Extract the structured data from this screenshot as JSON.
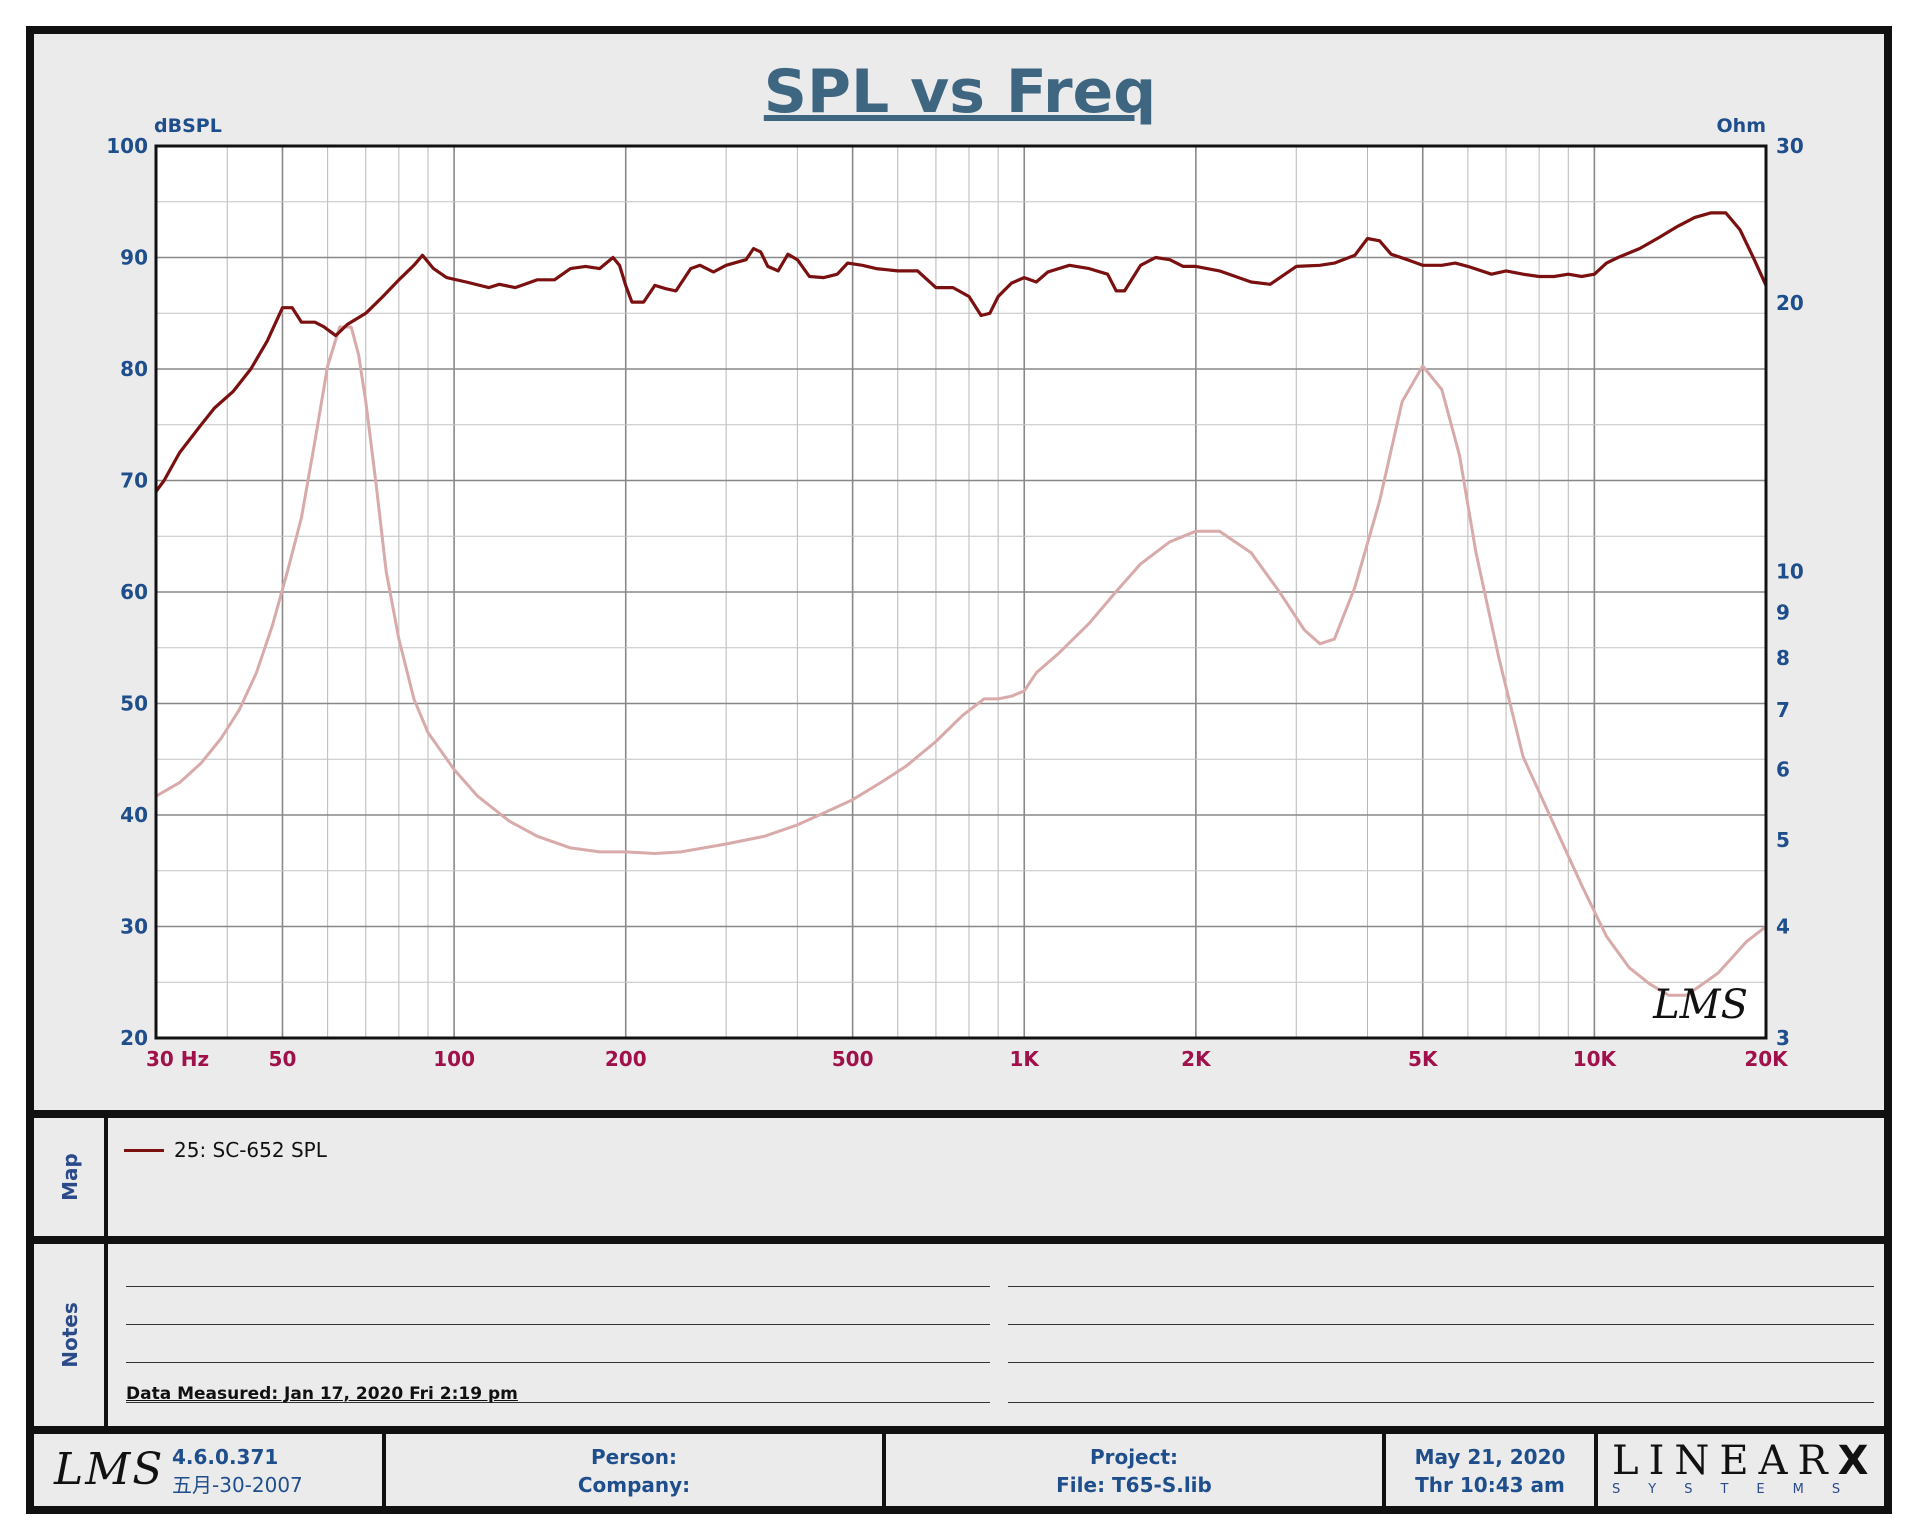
{
  "chart_data": {
    "type": "line",
    "title": "SPL vs Freq",
    "x_scale": "log",
    "xlim": [
      30,
      20000
    ],
    "x_ticks": [
      {
        "v": 30,
        "label": "30  Hz"
      },
      {
        "v": 50,
        "label": "50"
      },
      {
        "v": 100,
        "label": "100"
      },
      {
        "v": 200,
        "label": "200"
      },
      {
        "v": 500,
        "label": "500"
      },
      {
        "v": 1000,
        "label": "1K"
      },
      {
        "v": 2000,
        "label": "2K"
      },
      {
        "v": 5000,
        "label": "5K"
      },
      {
        "v": 10000,
        "label": "10K"
      },
      {
        "v": 20000,
        "label": "20K"
      }
    ],
    "ylabel": "dBSPL",
    "ylim": [
      20,
      100
    ],
    "y_ticks": [
      20,
      30,
      40,
      50,
      60,
      70,
      80,
      90,
      100
    ],
    "y2label": "Ohm",
    "y2_scale": "log",
    "y2lim": [
      3,
      30
    ],
    "y2_ticks": [
      3,
      4,
      5,
      6,
      7,
      8,
      9,
      10,
      20,
      30
    ],
    "grid": true,
    "watermark": "LMS",
    "series": [
      {
        "name": "25: SC-652 SPL",
        "axis": "left",
        "color": "#7a1010",
        "points": [
          [
            30,
            69
          ],
          [
            31,
            70
          ],
          [
            33,
            72.5
          ],
          [
            36,
            75
          ],
          [
            38,
            76.5
          ],
          [
            41,
            78
          ],
          [
            44,
            80
          ],
          [
            47,
            82.5
          ],
          [
            50,
            85.5
          ],
          [
            52,
            85.5
          ],
          [
            54,
            84.2
          ],
          [
            57,
            84.2
          ],
          [
            59,
            83.8
          ],
          [
            62,
            83
          ],
          [
            65,
            84
          ],
          [
            70,
            85
          ],
          [
            75,
            86.5
          ],
          [
            80,
            88
          ],
          [
            85,
            89.3
          ],
          [
            88,
            90.2
          ],
          [
            92,
            89
          ],
          [
            97,
            88.2
          ],
          [
            105,
            87.8
          ],
          [
            115,
            87.3
          ],
          [
            120,
            87.6
          ],
          [
            128,
            87.3
          ],
          [
            140,
            88
          ],
          [
            150,
            88
          ],
          [
            160,
            89
          ],
          [
            170,
            89.2
          ],
          [
            180,
            89
          ],
          [
            190,
            90
          ],
          [
            195,
            89.3
          ],
          [
            200,
            87.5
          ],
          [
            205,
            86
          ],
          [
            215,
            86
          ],
          [
            225,
            87.5
          ],
          [
            235,
            87.2
          ],
          [
            245,
            87
          ],
          [
            260,
            89
          ],
          [
            270,
            89.3
          ],
          [
            285,
            88.7
          ],
          [
            300,
            89.3
          ],
          [
            325,
            89.8
          ],
          [
            335,
            90.8
          ],
          [
            345,
            90.5
          ],
          [
            355,
            89.2
          ],
          [
            370,
            88.8
          ],
          [
            385,
            90.3
          ],
          [
            400,
            89.8
          ],
          [
            420,
            88.3
          ],
          [
            445,
            88.2
          ],
          [
            470,
            88.5
          ],
          [
            490,
            89.5
          ],
          [
            520,
            89.3
          ],
          [
            550,
            89
          ],
          [
            600,
            88.8
          ],
          [
            650,
            88.8
          ],
          [
            700,
            87.3
          ],
          [
            750,
            87.3
          ],
          [
            800,
            86.5
          ],
          [
            840,
            84.8
          ],
          [
            870,
            85
          ],
          [
            900,
            86.5
          ],
          [
            950,
            87.7
          ],
          [
            1000,
            88.2
          ],
          [
            1050,
            87.8
          ],
          [
            1100,
            88.7
          ],
          [
            1200,
            89.3
          ],
          [
            1300,
            89
          ],
          [
            1400,
            88.5
          ],
          [
            1450,
            87
          ],
          [
            1500,
            87
          ],
          [
            1600,
            89.3
          ],
          [
            1700,
            90
          ],
          [
            1800,
            89.8
          ],
          [
            1900,
            89.2
          ],
          [
            2000,
            89.2
          ],
          [
            2200,
            88.8
          ],
          [
            2500,
            87.8
          ],
          [
            2700,
            87.6
          ],
          [
            3000,
            89.2
          ],
          [
            3300,
            89.3
          ],
          [
            3500,
            89.5
          ],
          [
            3800,
            90.2
          ],
          [
            4000,
            91.7
          ],
          [
            4200,
            91.5
          ],
          [
            4400,
            90.3
          ],
          [
            4700,
            89.8
          ],
          [
            5000,
            89.3
          ],
          [
            5400,
            89.3
          ],
          [
            5700,
            89.5
          ],
          [
            6000,
            89.2
          ],
          [
            6600,
            88.5
          ],
          [
            7000,
            88.8
          ],
          [
            7500,
            88.5
          ],
          [
            8000,
            88.3
          ],
          [
            8500,
            88.3
          ],
          [
            9000,
            88.5
          ],
          [
            9500,
            88.3
          ],
          [
            10000,
            88.5
          ],
          [
            10500,
            89.5
          ],
          [
            11000,
            90
          ],
          [
            12000,
            90.8
          ],
          [
            13000,
            91.8
          ],
          [
            14000,
            92.8
          ],
          [
            15000,
            93.6
          ],
          [
            16000,
            94
          ],
          [
            17000,
            94
          ],
          [
            18000,
            92.5
          ],
          [
            19000,
            90
          ],
          [
            20000,
            87.5
          ]
        ]
      },
      {
        "axis": "right",
        "color": "#d8aaaa",
        "points": [
          [
            30,
            5.6
          ],
          [
            33,
            5.8
          ],
          [
            36,
            6.1
          ],
          [
            39,
            6.5
          ],
          [
            42,
            7
          ],
          [
            45,
            7.7
          ],
          [
            48,
            8.7
          ],
          [
            51,
            10
          ],
          [
            54,
            11.5
          ],
          [
            57,
            14
          ],
          [
            60,
            17
          ],
          [
            63,
            18.8
          ],
          [
            66,
            18.8
          ],
          [
            68,
            17.5
          ],
          [
            70,
            15.5
          ],
          [
            73,
            12.5
          ],
          [
            76,
            10
          ],
          [
            80,
            8.4
          ],
          [
            85,
            7.2
          ],
          [
            90,
            6.6
          ],
          [
            100,
            6
          ],
          [
            110,
            5.6
          ],
          [
            125,
            5.25
          ],
          [
            140,
            5.05
          ],
          [
            160,
            4.9
          ],
          [
            180,
            4.85
          ],
          [
            200,
            4.85
          ],
          [
            225,
            4.83
          ],
          [
            250,
            4.85
          ],
          [
            300,
            4.95
          ],
          [
            350,
            5.05
          ],
          [
            400,
            5.2
          ],
          [
            450,
            5.38
          ],
          [
            500,
            5.55
          ],
          [
            560,
            5.8
          ],
          [
            620,
            6.05
          ],
          [
            700,
            6.45
          ],
          [
            780,
            6.9
          ],
          [
            850,
            7.2
          ],
          [
            900,
            7.2
          ],
          [
            950,
            7.25
          ],
          [
            1000,
            7.35
          ],
          [
            1050,
            7.7
          ],
          [
            1150,
            8.1
          ],
          [
            1300,
            8.75
          ],
          [
            1450,
            9.5
          ],
          [
            1600,
            10.2
          ],
          [
            1800,
            10.8
          ],
          [
            2000,
            11.1
          ],
          [
            2200,
            11.1
          ],
          [
            2500,
            10.5
          ],
          [
            2800,
            9.5
          ],
          [
            3100,
            8.6
          ],
          [
            3300,
            8.3
          ],
          [
            3500,
            8.4
          ],
          [
            3800,
            9.6
          ],
          [
            4200,
            12
          ],
          [
            4600,
            15.5
          ],
          [
            5000,
            17
          ],
          [
            5400,
            16
          ],
          [
            5800,
            13.5
          ],
          [
            6200,
            10.5
          ],
          [
            6800,
            8
          ],
          [
            7500,
            6.2
          ],
          [
            8500,
            5.2
          ],
          [
            9500,
            4.45
          ],
          [
            10500,
            3.9
          ],
          [
            11500,
            3.6
          ],
          [
            12500,
            3.45
          ],
          [
            13500,
            3.35
          ],
          [
            14500,
            3.35
          ],
          [
            15500,
            3.45
          ],
          [
            16500,
            3.55
          ],
          [
            17500,
            3.7
          ],
          [
            18500,
            3.85
          ],
          [
            20000,
            4
          ]
        ]
      }
    ]
  },
  "map": {
    "label": "Map",
    "legend_entry": "25: SC-652 SPL"
  },
  "notes": {
    "label": "Notes",
    "data_measured": "Data Measured: Jan 17, 2020  Fri  2:19 pm"
  },
  "footer": {
    "logo": "LMS",
    "version": "4.6.0.371",
    "version_date": "五月-30-2007",
    "person": "Person:",
    "company": "Company:",
    "project": "Project:",
    "file": "File: T65-S.lib",
    "date": "May 21, 2020",
    "time": "Thr 10:43 am",
    "brand": "LINEAR",
    "brand_mark": "X",
    "brand_sub": "SYSTEMS"
  },
  "colors": {
    "title": "#3e6681",
    "axis_text": "#1f4e8c",
    "x_tick_text": "#a0104a",
    "spl_curve": "#7a1010",
    "impedance_curve": "#d8aaaa"
  }
}
